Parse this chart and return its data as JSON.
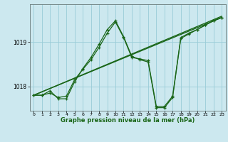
{
  "title": "Graphe pression niveau de la mer (hPa)",
  "bg_color": "#cce8ef",
  "grid_color": "#99ccd8",
  "line_color": "#1a6618",
  "x_ticks": [
    0,
    1,
    2,
    3,
    4,
    5,
    6,
    7,
    8,
    9,
    10,
    11,
    12,
    13,
    14,
    15,
    16,
    17,
    18,
    19,
    20,
    21,
    22,
    23
  ],
  "y_ticks": [
    1018,
    1019
  ],
  "ylim": [
    1017.45,
    1019.85
  ],
  "xlim": [
    -0.5,
    23.5
  ],
  "series1_x": [
    0,
    1,
    2,
    3,
    4,
    5,
    6,
    7,
    8,
    9,
    10,
    11,
    12,
    13,
    14,
    15,
    16,
    17,
    18,
    19,
    20,
    21,
    22,
    23
  ],
  "series1_y": [
    1017.8,
    1017.8,
    1017.85,
    1017.75,
    1017.78,
    1018.15,
    1018.38,
    1018.6,
    1018.88,
    1019.2,
    1019.45,
    1019.1,
    1018.65,
    1018.62,
    1018.58,
    1017.55,
    1017.55,
    1017.78,
    1019.1,
    1019.2,
    1019.28,
    1019.38,
    1019.48,
    1019.55
  ],
  "series2_x": [
    0,
    1,
    2,
    3,
    4,
    5,
    6,
    7,
    8,
    9,
    10,
    11,
    12,
    13,
    14,
    15,
    16,
    17,
    18,
    19,
    20,
    21,
    22,
    23
  ],
  "series2_y": [
    1017.8,
    1017.8,
    1017.9,
    1017.72,
    1017.72,
    1018.1,
    1018.4,
    1018.65,
    1018.95,
    1019.28,
    1019.48,
    1019.12,
    1018.68,
    1018.6,
    1018.55,
    1017.52,
    1017.52,
    1017.75,
    1019.08,
    1019.18,
    1019.28,
    1019.38,
    1019.48,
    1019.55
  ],
  "trend_x": [
    0,
    23
  ],
  "trend_y": [
    1017.8,
    1019.55
  ],
  "trend2_x": [
    0,
    23
  ],
  "trend2_y": [
    1017.8,
    1019.58
  ]
}
